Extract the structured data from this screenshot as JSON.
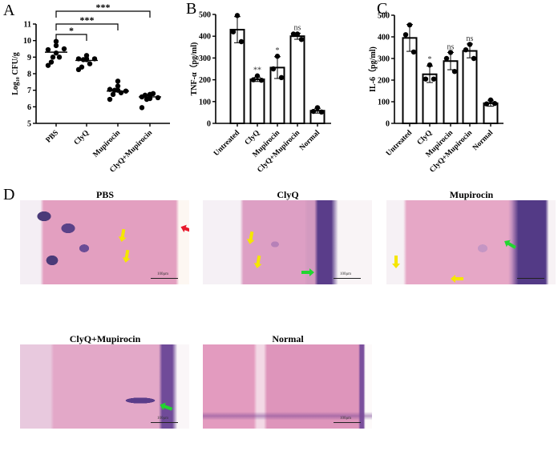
{
  "panel_labels": [
    "A",
    "B",
    "C",
    "D"
  ],
  "chart_data": [
    {
      "id": "A",
      "type": "scatter",
      "ylabel": "Log₁₀ CFU/g",
      "ylim": [
        5,
        11
      ],
      "yticks": [
        5,
        6,
        7,
        8,
        9,
        10,
        11
      ],
      "categories": [
        "PBS",
        "ClyQ",
        "Mupirocin",
        "ClyQ+Mupirocin"
      ],
      "points": [
        [
          9.95,
          9.7,
          9.45,
          9.5,
          9.25,
          9.0,
          9.0,
          8.7,
          8.5
        ],
        [
          9.1,
          8.9,
          8.9,
          8.9,
          8.85,
          8.85,
          8.6,
          8.4,
          8.25
        ],
        [
          7.55,
          7.25,
          7.05,
          6.95,
          7.0,
          7.0,
          6.85,
          6.75,
          6.45
        ],
        [
          6.75,
          6.7,
          6.6,
          6.55,
          6.5,
          6.45,
          6.8,
          6.7,
          5.95
        ]
      ],
      "means": [
        9.3,
        8.8,
        6.95,
        6.6
      ],
      "comparisons": [
        {
          "from": "PBS",
          "to": "ClyQ+Mupirocin",
          "label": "***"
        },
        {
          "from": "PBS",
          "to": "Mupirocin",
          "label": "***"
        },
        {
          "from": "PBS",
          "to": "ClyQ",
          "label": "*"
        }
      ]
    },
    {
      "id": "B",
      "type": "bar",
      "ylabel": "TNF-α（pg/ml)",
      "ylim": [
        0,
        500
      ],
      "yticks": [
        0,
        100,
        200,
        300,
        400,
        500
      ],
      "categories": [
        "Untreated",
        "ClyQ",
        "Mupirocin",
        "ClyQ+Mupirocin",
        "Normal"
      ],
      "values": [
        430,
        202,
        256,
        400,
        58
      ],
      "sd": [
        60,
        10,
        50,
        14,
        11
      ],
      "points": [
        [
          495,
          420,
          375
        ],
        [
          218,
          200,
          198
        ],
        [
          308,
          250,
          210
        ],
        [
          410,
          410,
          385
        ],
        [
          72,
          55,
          52
        ]
      ],
      "annotations": [
        "",
        "**",
        "*",
        "ns",
        ""
      ]
    },
    {
      "id": "C",
      "type": "bar",
      "ylabel": "IL-6（pg/ml)",
      "ylim": [
        0,
        500
      ],
      "yticks": [
        0,
        100,
        200,
        300,
        400,
        500
      ],
      "categories": [
        "Untreated",
        "ClyQ",
        "Mupirocin",
        "ClyQ+Mupirocin",
        "Normal"
      ],
      "values": [
        395,
        227,
        288,
        335,
        93
      ],
      "sd": [
        62,
        38,
        40,
        32,
        14
      ],
      "points": [
        [
          455,
          410,
          330
        ],
        [
          270,
          205,
          205
        ],
        [
          328,
          300,
          240
        ],
        [
          365,
          340,
          300
        ],
        [
          108,
          90,
          92
        ]
      ],
      "annotations": [
        "",
        "*",
        "ns",
        "ns",
        ""
      ]
    }
  ],
  "histology": [
    {
      "title": "PBS",
      "scale": "100μm"
    },
    {
      "title": "ClyQ",
      "scale": "100μm"
    },
    {
      "title": "Mupirocin",
      "scale": ""
    },
    {
      "title": "ClyQ+Mupirocin",
      "scale": "100μm"
    },
    {
      "title": "Normal",
      "scale": "100μm"
    }
  ],
  "colors": {
    "yellow_arrow": "#f5e600",
    "red_arrow": "#e8192c",
    "green_arrow": "#22d630",
    "stain_pink": "#e9a0bd",
    "stain_purple": "#5a3d8a"
  }
}
